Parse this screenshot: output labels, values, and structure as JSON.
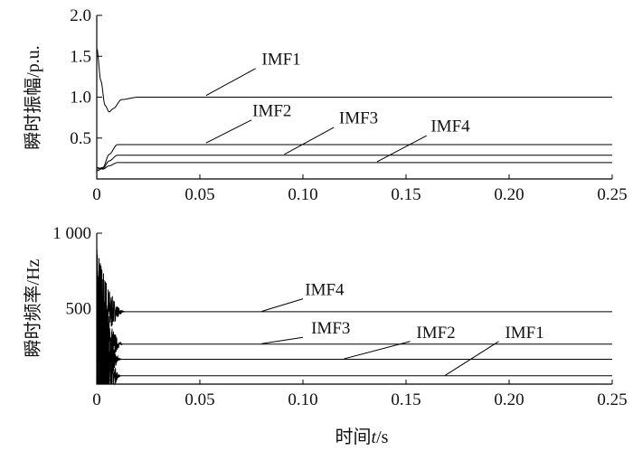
{
  "chart_data": [
    {
      "type": "line",
      "ylabel": "瞬时振幅/p.u.",
      "xlim": [
        0,
        0.25
      ],
      "ylim": [
        0,
        2.0
      ],
      "xticks": [
        "0",
        "0.05",
        "0.10",
        "0.15",
        "0.20",
        "0.25"
      ],
      "xtick_values": [
        0,
        0.05,
        0.1,
        0.15,
        0.2,
        0.25
      ],
      "yticks": [
        "0.5",
        "1.0",
        "1.5",
        "2.0"
      ],
      "ytick_values": [
        0.5,
        1.0,
        1.5,
        2.0
      ],
      "series": [
        {
          "name": "IMF1",
          "x": [
            0,
            0.002,
            0.004,
            0.006,
            0.008,
            0.012,
            0.02,
            0.25
          ],
          "y": [
            1.6,
            1.2,
            0.9,
            0.82,
            0.86,
            0.97,
            1.0,
            1.0
          ]
        },
        {
          "name": "IMF2",
          "x": [
            0,
            0.003,
            0.006,
            0.01,
            0.25
          ],
          "y": [
            0.12,
            0.14,
            0.3,
            0.42,
            0.42
          ]
        },
        {
          "name": "IMF3",
          "x": [
            0,
            0.003,
            0.006,
            0.01,
            0.25
          ],
          "y": [
            0.1,
            0.13,
            0.22,
            0.29,
            0.29
          ]
        },
        {
          "name": "IMF4",
          "x": [
            0,
            0.003,
            0.006,
            0.01,
            0.25
          ],
          "y": [
            0.14,
            0.12,
            0.16,
            0.2,
            0.2
          ]
        }
      ],
      "annotations": [
        {
          "text": "IMF1",
          "x_label": 0.08,
          "y_label": 1.4,
          "x_from": 0.077,
          "y_from": 1.35,
          "x_to": 0.053,
          "y_to": 1.02
        },
        {
          "text": "IMF2",
          "x_label": 0.0755,
          "y_label": 0.77,
          "x_from": 0.075,
          "y_from": 0.72,
          "x_to": 0.053,
          "y_to": 0.44
        },
        {
          "text": "IMF3",
          "x_label": 0.1175,
          "y_label": 0.68,
          "x_from": 0.115,
          "y_from": 0.63,
          "x_to": 0.091,
          "y_to": 0.3
        },
        {
          "text": "IMF4",
          "x_label": 0.162,
          "y_label": 0.58,
          "x_from": 0.16,
          "y_from": 0.53,
          "x_to": 0.136,
          "y_to": 0.21
        }
      ]
    },
    {
      "type": "line",
      "ylabel": "瞬时频率/Hz",
      "xlabel_prefix": "时间",
      "xlabel_var": "t",
      "xlabel_suffix": "/s",
      "xlim": [
        0,
        0.25
      ],
      "ylim": [
        0,
        1000
      ],
      "xticks": [
        "0",
        "0.05",
        "0.10",
        "0.15",
        "0.20",
        "0.25"
      ],
      "xtick_values": [
        0,
        0.05,
        0.1,
        0.15,
        0.2,
        0.25
      ],
      "yticks": [
        "500",
        "1 000"
      ],
      "ytick_values": [
        500,
        1000
      ],
      "series": [
        {
          "name": "IMF4",
          "final": 480,
          "settle": 0.014
        },
        {
          "name": "IMF3",
          "final": 265,
          "settle": 0.013
        },
        {
          "name": "IMF2",
          "final": 165,
          "settle": 0.012
        },
        {
          "name": "IMF1",
          "final": 55,
          "settle": 0.012
        }
      ],
      "annotations": [
        {
          "text": "IMF4",
          "x_label": 0.101,
          "y_label": 590,
          "x_from": 0.1,
          "y_from": 565,
          "x_to": 0.08,
          "y_to": 482
        },
        {
          "text": "IMF3",
          "x_label": 0.104,
          "y_label": 335,
          "x_from": 0.1,
          "y_from": 310,
          "x_to": 0.08,
          "y_to": 268
        },
        {
          "text": "IMF2",
          "x_label": 0.155,
          "y_label": 305,
          "x_from": 0.152,
          "y_from": 283,
          "x_to": 0.12,
          "y_to": 168
        },
        {
          "text": "IMF1",
          "x_label": 0.198,
          "y_label": 305,
          "x_from": 0.195,
          "y_from": 283,
          "x_to": 0.169,
          "y_to": 58
        }
      ]
    }
  ]
}
